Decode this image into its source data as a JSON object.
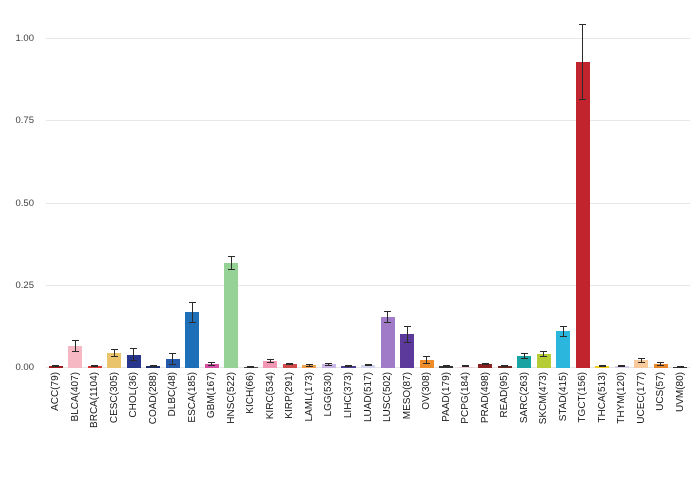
{
  "chart_data": {
    "type": "bar",
    "title": "",
    "xlabel": "",
    "ylabel": "",
    "ylim": [
      0,
      1.08
    ],
    "grid": true,
    "legend": false,
    "error_bars": true,
    "yticks": [
      0,
      0.25,
      0.5,
      0.75,
      1.0
    ],
    "ytick_labels": [
      "0.00",
      "0.25",
      "0.50",
      "0.75",
      "1.00"
    ],
    "categories": [
      "ACC(79)",
      "BLCA(407)",
      "BRCA(1104)",
      "CESC(305)",
      "CHOL(36)",
      "COAD(288)",
      "DLBC(48)",
      "ESCA(185)",
      "GBM(167)",
      "HNSC(522)",
      "KICH(66)",
      "KIRC(534)",
      "KIRP(291)",
      "LAML(173)",
      "LGG(530)",
      "LIHC(373)",
      "LUAD(517)",
      "LUSC(502)",
      "MESO(87)",
      "OV(308)",
      "PAAD(179)",
      "PCPG(184)",
      "PRAD(498)",
      "READ(95)",
      "SARC(263)",
      "SKCM(473)",
      "STAD(415)",
      "TGCT(156)",
      "THCA(513)",
      "THYM(120)",
      "UCEC(177)",
      "UCS(57)",
      "UVM(80)"
    ],
    "values": [
      0.005,
      0.066,
      0.006,
      0.047,
      0.04,
      0.006,
      0.027,
      0.17,
      0.012,
      0.32,
      0.003,
      0.021,
      0.012,
      0.008,
      0.011,
      0.006,
      0.008,
      0.154,
      0.102,
      0.024,
      0.005,
      0.004,
      0.012,
      0.006,
      0.036,
      0.042,
      0.111,
      0.93,
      0.006,
      0.006,
      0.024,
      0.012,
      0.003
    ],
    "errors": [
      0.003,
      0.018,
      0.002,
      0.012,
      0.02,
      0.003,
      0.018,
      0.032,
      0.005,
      0.022,
      0.002,
      0.006,
      0.004,
      0.004,
      0.004,
      0.002,
      0.003,
      0.018,
      0.026,
      0.013,
      0.002,
      0.002,
      0.004,
      0.003,
      0.01,
      0.01,
      0.016,
      0.115,
      0.003,
      0.003,
      0.008,
      0.006,
      0.002
    ],
    "colors": [
      "#9e1b1b",
      "#f6b8c3",
      "#d93636",
      "#e9c46a",
      "#27368c",
      "#1b2a6b",
      "#2458a8",
      "#1d6fb8",
      "#d44fa4",
      "#96d296",
      "#4d4d4d",
      "#f497b5",
      "#cf4a4a",
      "#f0a04b",
      "#c9b6e4",
      "#4a3e8e",
      "#d4d3ec",
      "#a07cc8",
      "#5b3a9b",
      "#ef8c2a",
      "#333333",
      "#eec9d2",
      "#8c1f1f",
      "#70241f",
      "#1aa3a3",
      "#b5cc34",
      "#2bb7dd",
      "#c2242e",
      "#f2d022",
      "#d9cfe6",
      "#f7c99b",
      "#e8872b",
      "#3a3a3a"
    ]
  },
  "style_colors": {
    "background": "#ffffff",
    "grid": "#e6e6e6",
    "axis_text": "#404040",
    "label_text": "#1a1a1a",
    "error_bar": "#2b2b2b"
  }
}
